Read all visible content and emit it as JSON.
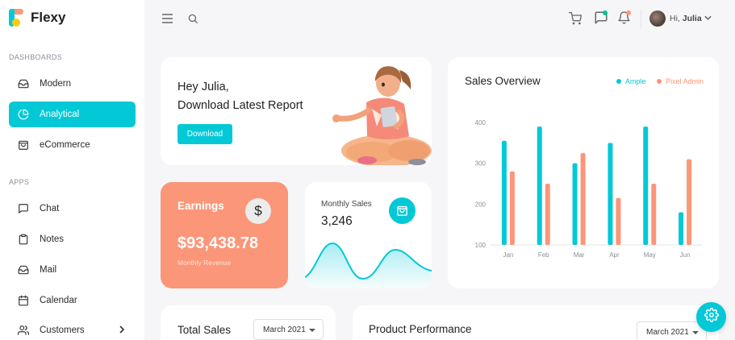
{
  "brand": {
    "name": "Flexy"
  },
  "sidebar": {
    "sections": [
      "DASHBOARDS",
      "APPS"
    ],
    "dashboards": [
      {
        "label": "Modern",
        "icon": "tray-icon"
      },
      {
        "label": "Analytical",
        "icon": "pie-chart-icon",
        "active": true
      },
      {
        "label": "eCommerce",
        "icon": "shopping-bag-icon"
      }
    ],
    "apps": [
      {
        "label": "Chat",
        "icon": "message-square-icon"
      },
      {
        "label": "Notes",
        "icon": "clipboard-icon"
      },
      {
        "label": "Mail",
        "icon": "mail-icon"
      },
      {
        "label": "Calendar",
        "icon": "calendar-icon"
      },
      {
        "label": "Customers",
        "icon": "users-icon",
        "chevron": true
      }
    ]
  },
  "topbar": {
    "greeting": "Hi,",
    "user_name": "Julia",
    "icons": [
      "menu-icon",
      "search-icon",
      "cart-icon",
      "message-icon",
      "bell-icon"
    ]
  },
  "welcome": {
    "line1": "Hey Julia,",
    "line2": "Download Latest Report",
    "button": "Download"
  },
  "earnings": {
    "title": "Earnings",
    "amount": "$93,438.78",
    "subtitle": "Monthly Revenue",
    "icon_symbol": "$"
  },
  "monthly_sales": {
    "title": "Monthly Sales",
    "value": "3,246"
  },
  "sales_overview": {
    "title": "Sales Overview",
    "legend": [
      "Ample",
      "Pixel Admin"
    ]
  },
  "total_sales": {
    "title": "Total Sales",
    "select_value": "March 2021"
  },
  "product_performance": {
    "title": "Product Performance",
    "select_value": "March 2021"
  },
  "colors": {
    "primary": "#03c9d7",
    "secondary": "#fb9678",
    "accent_dot_green": "#00c292",
    "accent_dot_orange": "#fb9678"
  },
  "chart_data": {
    "type": "bar",
    "title": "Sales Overview",
    "categories": [
      "Jan",
      "Feb",
      "Mar",
      "Apr",
      "May",
      "Jun"
    ],
    "yticks": [
      "400",
      "300",
      "200",
      "100"
    ],
    "ylim": [
      100,
      400
    ],
    "grid": false,
    "legend_position": "top-right",
    "series": [
      {
        "name": "Ample",
        "color": "#03c9d7",
        "values": [
          355,
          390,
          300,
          350,
          390,
          180
        ]
      },
      {
        "name": "Pixel Admin",
        "color": "#fb9678",
        "values": [
          280,
          250,
          325,
          215,
          250,
          310
        ]
      }
    ]
  }
}
